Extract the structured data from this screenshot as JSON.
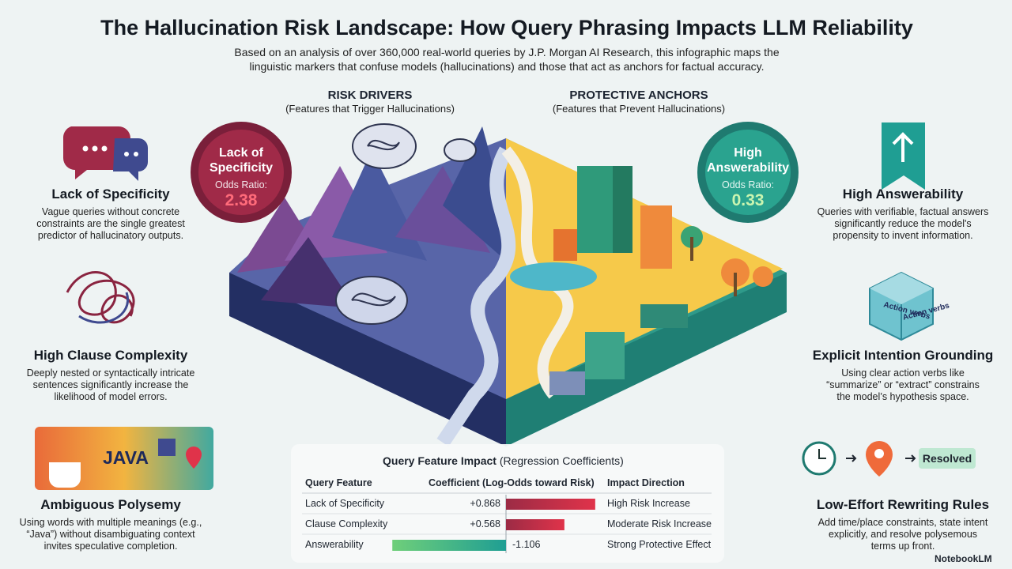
{
  "header": {
    "title": "The Hallucination Risk Landscape: How Query Phrasing Impacts LLM Reliability",
    "subtitle_lines": [
      "Based on an analysis of over 360,000 real-world queries by J.P. Morgan AI Research, this infographic maps the",
      "linguistic markers that confuse models (hallucinations) and those that act as anchors for factual accuracy."
    ]
  },
  "risk_drivers": {
    "heading": "RISK DRIVERS",
    "subheading": "(Features that Trigger Hallucinations)",
    "badge": {
      "label_lines": [
        "Lack of",
        "Specificity"
      ],
      "metric": "Odds Ratio:",
      "value": "2.38"
    }
  },
  "protective_anchors": {
    "heading": "PROTECTIVE ANCHORS",
    "subheading": "(Features that Prevent Hallucinations)",
    "badge": {
      "label_lines": [
        "High",
        "Answerability"
      ],
      "metric": "Odds Ratio:",
      "value": "0.33"
    }
  },
  "left_items": [
    {
      "title": "Lack of Specificity",
      "lines": [
        "Vague queries without concrete",
        "constraints are the single greatest",
        "predictor of hallucinatory outputs."
      ]
    },
    {
      "title": "High Clause Complexity",
      "lines": [
        "Deeply nested or syntactically intricate",
        "sentences significantly increase the",
        "likelihood of model errors."
      ]
    },
    {
      "title": "Ambiguous Polysemy",
      "icon_text": "JAVA",
      "lines": [
        "Using words with multiple meanings (e.g.,",
        "“Java”) without disambiguating context",
        "invites speculative completion."
      ]
    }
  ],
  "right_items": [
    {
      "title": "High Answerability",
      "lines": [
        "Queries with verifiable, factual answers",
        "significantly reduce the model's",
        "propensity to invent information."
      ]
    },
    {
      "title": "Explicit Intention Grounding",
      "icon_text": "Action verbs",
      "lines": [
        "Using clear action verbs like",
        "“summarize” or “extract” constrains",
        "the model’s hypothesis space."
      ]
    },
    {
      "title": "Low-Effort Rewriting Rules",
      "icon_text": "Resolved",
      "lines": [
        "Add time/place constraints, state intent",
        "explicitly, and resolve polysemous",
        "terms up front."
      ]
    }
  ],
  "table": {
    "title": "Query Feature Impact",
    "title_note": "(Regression Coefficients)",
    "columns": [
      "Query Feature",
      "Coefficient (Log-Odds toward Risk)",
      "Impact Direction"
    ],
    "rows": [
      {
        "feature": "Lack of Specificity",
        "coefficient": 0.868,
        "coefficient_label": "+0.868",
        "direction": "High Risk Increase"
      },
      {
        "feature": "Clause Complexity",
        "coefficient": 0.568,
        "coefficient_label": "+0.568",
        "direction": "Moderate Risk Increase"
      },
      {
        "feature": "Answerability",
        "coefficient": -1.106,
        "coefficient_label": "-1.106",
        "direction": "Strong Protective Effect"
      }
    ]
  },
  "footer": {
    "brand": "NotebookLM"
  }
}
